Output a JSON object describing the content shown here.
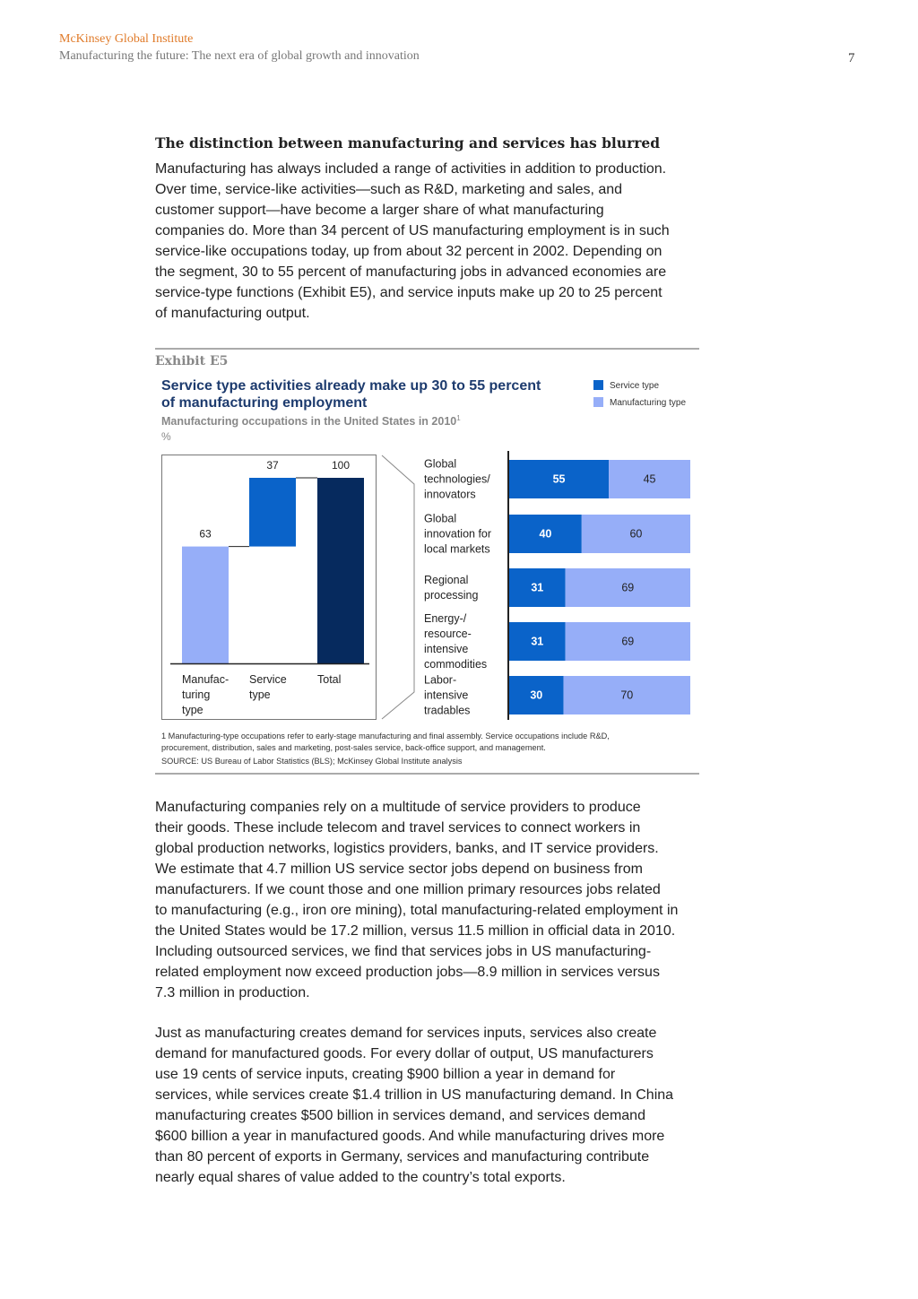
{
  "header": {
    "org": "McKinsey Global Institute",
    "subtitle": "Manufacturing the future: The next era of global growth and innovation",
    "page_number": "7"
  },
  "section": {
    "title": "The distinction between manufacturing and services has blurred",
    "para1": [
      "Manufacturing has always included a range of activities in addition to production.",
      "Over time, service-like activities—such as R&D, marketing and sales, and",
      "customer support—have become a larger share of what manufacturing",
      "companies do. More than 34 percent of US manufacturing employment is in such",
      "service-like occupations today, up from about 32 percent in 2002. Depending on",
      "the segment, 30 to 55 percent of manufacturing jobs in advanced economies are",
      "service-type functions (Exhibit E5), and service inputs make up 20 to 25 percent",
      "of manufacturing output."
    ]
  },
  "exhibit": {
    "label": "Exhibit E5",
    "title_lines": [
      "Service type activities already make up 30 to 55 percent",
      "of manufacturing employment"
    ],
    "subtitle": "Manufacturing occupations in the United States in 2010",
    "subtitle_sup": "1",
    "unit": "%",
    "legend": [
      {
        "label": "Service type",
        "color": "#0a63c9"
      },
      {
        "label": "Manufacturing type",
        "color": "#96aef8"
      }
    ],
    "footnotes": [
      "1  Manufacturing-type occupations refer to early-stage manufacturing and final assembly. Service occupations include R&D,",
      "    procurement, distribution, sales and marketing, post-sales service, back-office support, and management.",
      "SOURCE: US Bureau of Labor Statistics (BLS); McKinsey Global Institute analysis"
    ]
  },
  "chart_data": [
    {
      "type": "bar",
      "subtype": "waterfall",
      "categories": [
        [
          "Manufac-",
          "turing",
          "type"
        ],
        [
          "Service",
          "type"
        ],
        [
          "Total"
        ]
      ],
      "values": [
        63,
        37,
        100
      ],
      "labels": [
        "63",
        "37",
        "100"
      ],
      "colors": [
        "#96aef8",
        "#0a63c9",
        "#062a5e"
      ],
      "ylim": [
        0,
        100
      ]
    },
    {
      "type": "bar",
      "orientation": "horizontal",
      "stacked": true,
      "categories": [
        [
          "Global",
          "technologies/",
          "innovators"
        ],
        [
          "Global",
          "innovation for",
          "local markets"
        ],
        [
          "Regional",
          "processing"
        ],
        [
          "Energy-/",
          "resource-",
          "intensive",
          "commodities"
        ],
        [
          "Labor-",
          "intensive",
          "tradables"
        ]
      ],
      "series": [
        {
          "name": "Service type",
          "values": [
            55,
            40,
            31,
            31,
            30
          ],
          "color": "#0a63c9"
        },
        {
          "name": "Manufacturing type",
          "values": [
            45,
            60,
            69,
            69,
            70
          ],
          "color": "#96aef8"
        }
      ],
      "xlim": [
        0,
        100
      ]
    }
  ],
  "body": {
    "para2": [
      "Manufacturing companies rely on a multitude of service providers to produce",
      "their goods. These include telecom and travel services to connect workers in",
      "global production networks, logistics providers, banks, and IT service providers.",
      "We estimate that 4.7 million US service sector jobs depend on business from",
      "manufacturers. If we count those and one million primary resources jobs related",
      "to manufacturing (e.g., iron ore mining), total manufacturing-related employment in",
      "the United States would be 17.2 million, versus 11.5 million in official data in 2010.",
      "Including outsourced services, we find that services jobs in US manufacturing-",
      "related employment now exceed production jobs—8.9 million in services versus",
      "7.3 million in production."
    ],
    "para3": [
      "Just as manufacturing creates demand for services inputs, services also create",
      "demand for manufactured goods. For every dollar of output, US manufacturers",
      "use 19 cents of service inputs, creating $900 billion a year in demand for",
      "services, while services create $1.4 trillion in US manufacturing demand. In China",
      "manufacturing creates $500 billion in services demand, and services demand",
      "$600 billion a year in manufactured goods. And while manufacturing drives more",
      "than 80 percent of exports in Germany, services and manufacturing contribute",
      "nearly equal shares of value added to the country’s total exports."
    ]
  }
}
